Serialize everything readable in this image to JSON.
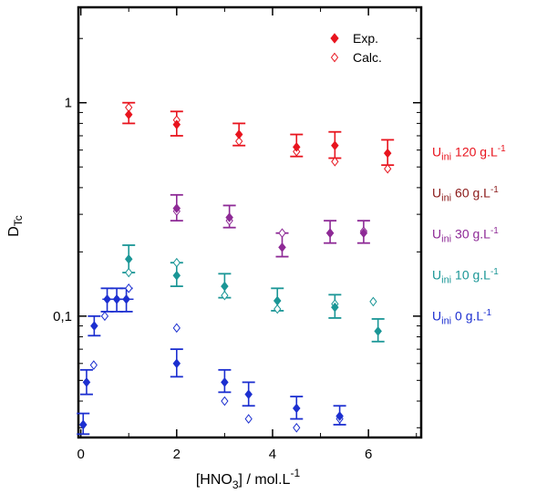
{
  "chart_data": {
    "type": "scatter",
    "ylabel": "D",
    "ylabel_sub": "Tc",
    "xlabel_pre": "[HNO",
    "xlabel_sub": "3",
    "xlabel_mid": "]  /  mol.L",
    "xlabel_sup": "-1",
    "x_scale": "linear",
    "y_scale": "log",
    "xlim": [
      -0.05,
      7.1
    ],
    "ylim": [
      0.027,
      2.8
    ],
    "x_ticks": [
      {
        "value": 0,
        "label": "0"
      },
      {
        "value": 2,
        "label": "2"
      },
      {
        "value": 4,
        "label": "4"
      },
      {
        "value": 6,
        "label": "6"
      }
    ],
    "y_ticks": [
      {
        "value": 0.1,
        "label": "0,1"
      },
      {
        "value": 1,
        "label": "1"
      }
    ],
    "legend_markers": [
      {
        "label": "Exp.",
        "style": "filled-diamond",
        "color": "#e8141e"
      },
      {
        "label": "Calc.",
        "style": "open-diamond",
        "color": "#e8141e"
      }
    ],
    "series": [
      {
        "name_main": "U",
        "name_sub": "ini",
        "name_rest": " 120 g.L",
        "name_sup": "-1",
        "color": "#e8141e",
        "exp": [
          {
            "x": 1.0,
            "y": 0.88,
            "ylo": 0.8,
            "yhi": 1.0
          },
          {
            "x": 2.0,
            "y": 0.79,
            "ylo": 0.7,
            "yhi": 0.91
          },
          {
            "x": 3.3,
            "y": 0.71,
            "ylo": 0.63,
            "yhi": 0.8
          },
          {
            "x": 4.5,
            "y": 0.62,
            "ylo": 0.56,
            "yhi": 0.71
          },
          {
            "x": 5.3,
            "y": 0.63,
            "ylo": 0.55,
            "yhi": 0.73
          },
          {
            "x": 6.4,
            "y": 0.58,
            "ylo": 0.51,
            "yhi": 0.67
          }
        ],
        "calc": [
          {
            "x": 1.0,
            "y": 0.95
          },
          {
            "x": 2.0,
            "y": 0.83
          },
          {
            "x": 3.3,
            "y": 0.66
          },
          {
            "x": 4.5,
            "y": 0.59
          },
          {
            "x": 5.3,
            "y": 0.53
          },
          {
            "x": 6.4,
            "y": 0.49
          }
        ]
      },
      {
        "name_main": "U",
        "name_sub": "ini",
        "name_rest": " 60 g.L",
        "name_sup": "-1",
        "color": "#8b1a1a",
        "exp": [],
        "calc": []
      },
      {
        "name_main": "U",
        "name_sub": "ini",
        "name_rest": " 30 g.L",
        "name_sup": "-1",
        "color": "#8e2a96",
        "exp": [
          {
            "x": 2.0,
            "y": 0.32,
            "ylo": 0.28,
            "yhi": 0.37
          },
          {
            "x": 3.1,
            "y": 0.29,
            "ylo": 0.26,
            "yhi": 0.33
          },
          {
            "x": 4.2,
            "y": 0.21,
            "ylo": 0.19,
            "yhi": 0.245
          },
          {
            "x": 5.2,
            "y": 0.245,
            "ylo": 0.22,
            "yhi": 0.28
          },
          {
            "x": 5.9,
            "y": 0.245,
            "ylo": 0.22,
            "yhi": 0.28
          }
        ],
        "calc": [
          {
            "x": 2.0,
            "y": 0.31
          },
          {
            "x": 3.1,
            "y": 0.28
          },
          {
            "x": 4.2,
            "y": 0.245
          },
          {
            "x": 5.2,
            "y": 0.245
          },
          {
            "x": 5.9,
            "y": 0.25
          }
        ]
      },
      {
        "name_main": "U",
        "name_sub": "ini",
        "name_rest": " 10 g.L",
        "name_sup": "-1",
        "color": "#1a9696",
        "exp": [
          {
            "x": 1.0,
            "y": 0.185,
            "ylo": 0.16,
            "yhi": 0.215
          },
          {
            "x": 2.0,
            "y": 0.155,
            "ylo": 0.138,
            "yhi": 0.178
          },
          {
            "x": 3.0,
            "y": 0.138,
            "ylo": 0.122,
            "yhi": 0.158
          },
          {
            "x": 4.1,
            "y": 0.118,
            "ylo": 0.106,
            "yhi": 0.135
          },
          {
            "x": 5.3,
            "y": 0.11,
            "ylo": 0.098,
            "yhi": 0.126
          },
          {
            "x": 6.2,
            "y": 0.085,
            "ylo": 0.076,
            "yhi": 0.097
          }
        ],
        "calc": [
          {
            "x": 1.0,
            "y": 0.16
          },
          {
            "x": 2.0,
            "y": 0.178
          },
          {
            "x": 3.0,
            "y": 0.125
          },
          {
            "x": 4.1,
            "y": 0.108
          },
          {
            "x": 5.3,
            "y": 0.114
          },
          {
            "x": 6.1,
            "y": 0.117
          }
        ]
      },
      {
        "name_main": "U",
        "name_sub": "ini",
        "name_rest": " 0 g.L",
        "name_sup": "-1",
        "color": "#1c2fd0",
        "exp": [
          {
            "x": 0.05,
            "y": 0.031,
            "ylo": 0.028,
            "yhi": 0.035
          },
          {
            "x": 0.12,
            "y": 0.049,
            "ylo": 0.043,
            "yhi": 0.056
          },
          {
            "x": 0.28,
            "y": 0.09,
            "ylo": 0.081,
            "yhi": 0.1
          },
          {
            "x": 0.55,
            "y": 0.12,
            "ylo": 0.105,
            "yhi": 0.135,
            "xlo": 0.45,
            "xhi": 0.65
          },
          {
            "x": 0.75,
            "y": 0.12,
            "ylo": 0.105,
            "yhi": 0.135,
            "xlo": 0.6,
            "xhi": 0.9
          },
          {
            "x": 0.95,
            "y": 0.12,
            "ylo": 0.105,
            "yhi": 0.135,
            "xlo": 0.8,
            "xhi": 1.1
          },
          {
            "x": 2.0,
            "y": 0.06,
            "ylo": 0.052,
            "yhi": 0.07
          },
          {
            "x": 3.0,
            "y": 0.049,
            "ylo": 0.044,
            "yhi": 0.056
          },
          {
            "x": 3.5,
            "y": 0.043,
            "ylo": 0.038,
            "yhi": 0.049
          },
          {
            "x": 4.5,
            "y": 0.037,
            "ylo": 0.033,
            "yhi": 0.042
          },
          {
            "x": 5.4,
            "y": 0.034,
            "ylo": 0.031,
            "yhi": 0.038
          }
        ],
        "calc": [
          {
            "x": 0.05,
            "y": 0.031
          },
          {
            "x": 0.27,
            "y": 0.059
          },
          {
            "x": 0.5,
            "y": 0.1
          },
          {
            "x": 0.75,
            "y": 0.12
          },
          {
            "x": 1.0,
            "y": 0.135
          },
          {
            "x": 2.0,
            "y": 0.088
          },
          {
            "x": 3.0,
            "y": 0.04
          },
          {
            "x": 3.5,
            "y": 0.033
          },
          {
            "x": 4.5,
            "y": 0.03
          },
          {
            "x": 5.4,
            "y": 0.033
          }
        ]
      }
    ]
  }
}
